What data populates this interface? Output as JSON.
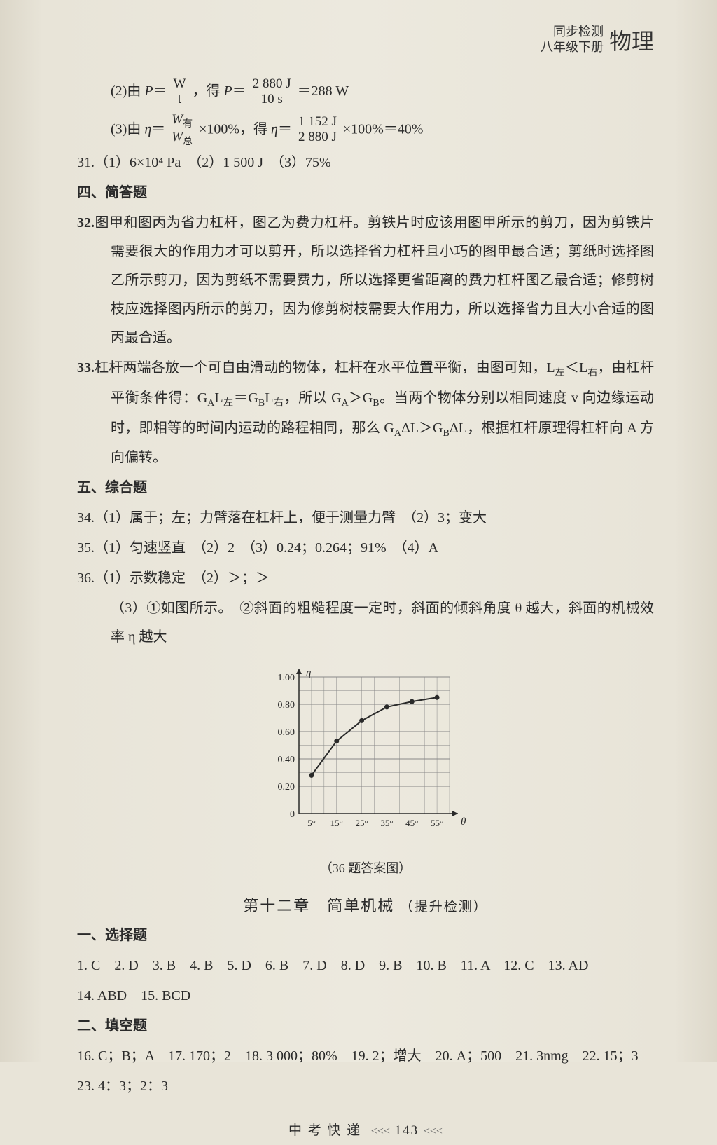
{
  "header": {
    "line1": "同步检测",
    "line2": "八年级下册",
    "subject": "物理"
  },
  "equations": {
    "eq30_2_prefix": "(2)由 ",
    "eq30_2_lhs_P": "P",
    "eq30_2_frac1_n": "W",
    "eq30_2_frac1_d": "t",
    "eq30_2_mid": "，得 ",
    "eq30_2_frac2_n": "2 880 J",
    "eq30_2_frac2_d": "10 s",
    "eq30_2_result": "＝288 W",
    "eq30_3_prefix": "(3)由 ",
    "eq30_3_eta": "η",
    "eq30_3_frac1_n": "W有",
    "eq30_3_frac1_d": "W总",
    "eq30_3_x100a": "×100%，得 ",
    "eq30_3_frac2_n": "1 152 J",
    "eq30_3_frac2_d": "2 880 J",
    "eq30_3_result": "×100%＝40%"
  },
  "q31": "31.（1）6×10⁴ Pa　（2）1 500 J　（3）75%",
  "sec4": "四、简答题",
  "q32": {
    "prefix": "32.",
    "text": "图甲和图丙为省力杠杆，图乙为费力杠杆。剪铁片时应该用图甲所示的剪刀，因为剪铁片需要很大的作用力才可以剪开，所以选择省力杠杆且小巧的图甲最合适；剪纸时选择图乙所示剪刀，因为剪纸不需要费力，所以选择更省距离的费力杠杆图乙最合适；修剪树枝应选择图丙所示的剪刀，因为修剪树枝需要大作用力，所以选择省力且大小合适的图丙最合适。"
  },
  "q33": {
    "prefix": "33.",
    "text_a": "杠杆两端各放一个可自由滑动的物体，杠杆在水平位置平衡，由图可知，L",
    "text_b": "＜L",
    "text_c": "，由杠杆平衡条件得：G",
    "text_d": "L",
    "text_e": "＝G",
    "text_f": "L",
    "text_g": "，所以 G",
    "text_h": "＞G",
    "text_i": "。当两个物体分别以相同速度 v 向边缘运动时，即相等的时间内运动的路程相同，那么 G",
    "text_j": "ΔL＞G",
    "text_k": "ΔL，根据杠杆原理得杠杆向 A 方向偏转。",
    "sub_left": "左",
    "sub_right": "右",
    "sub_A": "A",
    "sub_B": "B"
  },
  "sec5": "五、综合题",
  "q34": "34.（1）属于；左；力臂落在杠杆上，便于测量力臂　（2）3；变大",
  "q35": "35.（1）匀速竖直　（2）2　（3）0.24；0.264；91%　（4）A",
  "q36_1": "36.（1）示数稳定　（2）＞；＞",
  "q36_3": "（3）①如图所示。　②斜面的粗糙程度一定时，斜面的倾斜角度 θ 越大，斜面的机械效率 η 越大",
  "chart": {
    "caption": "（36 题答案图）",
    "x_label": "θ",
    "y_label": "η",
    "x_ticks": [
      "5°",
      "15°",
      "25°",
      "35°",
      "45°",
      "55°"
    ],
    "y_ticks": [
      "0",
      "0.20",
      "0.40",
      "0.60",
      "0.80",
      "1.00"
    ],
    "x_vals": [
      5,
      15,
      25,
      35,
      45,
      55
    ],
    "y_vals": [
      0.28,
      0.53,
      0.68,
      0.78,
      0.82,
      0.85
    ],
    "ylim": [
      0,
      1.0
    ],
    "xlim": [
      0,
      60
    ],
    "grid_color": "#888",
    "axis_color": "#2a2a2a",
    "line_color": "#2a2a2a",
    "background": "#e8e4d8",
    "grid_minor": true
  },
  "chapter_title": "第十二章　简单机械",
  "chapter_sub": "（提升检测）",
  "sec1": "一、选择题",
  "mc1": "1. C　2. D　3. B　4. B　5. D　6. B　7. D　8. D　9. B　10. B　11. A　12. C　13. AD",
  "mc2": "14. ABD　15. BCD",
  "sec2": "二、填空题",
  "fb1": "16. C；B；A　17. 170；2　18. 3 000；80%　19. 2；增大　20. A；500　21. 3nmg　22. 15；3",
  "fb2": "23. 4：3；2：3",
  "footer": {
    "title": "中 考 快 递",
    "left_arr": "<<<",
    "page": "143",
    "right_arr": "<<<"
  }
}
